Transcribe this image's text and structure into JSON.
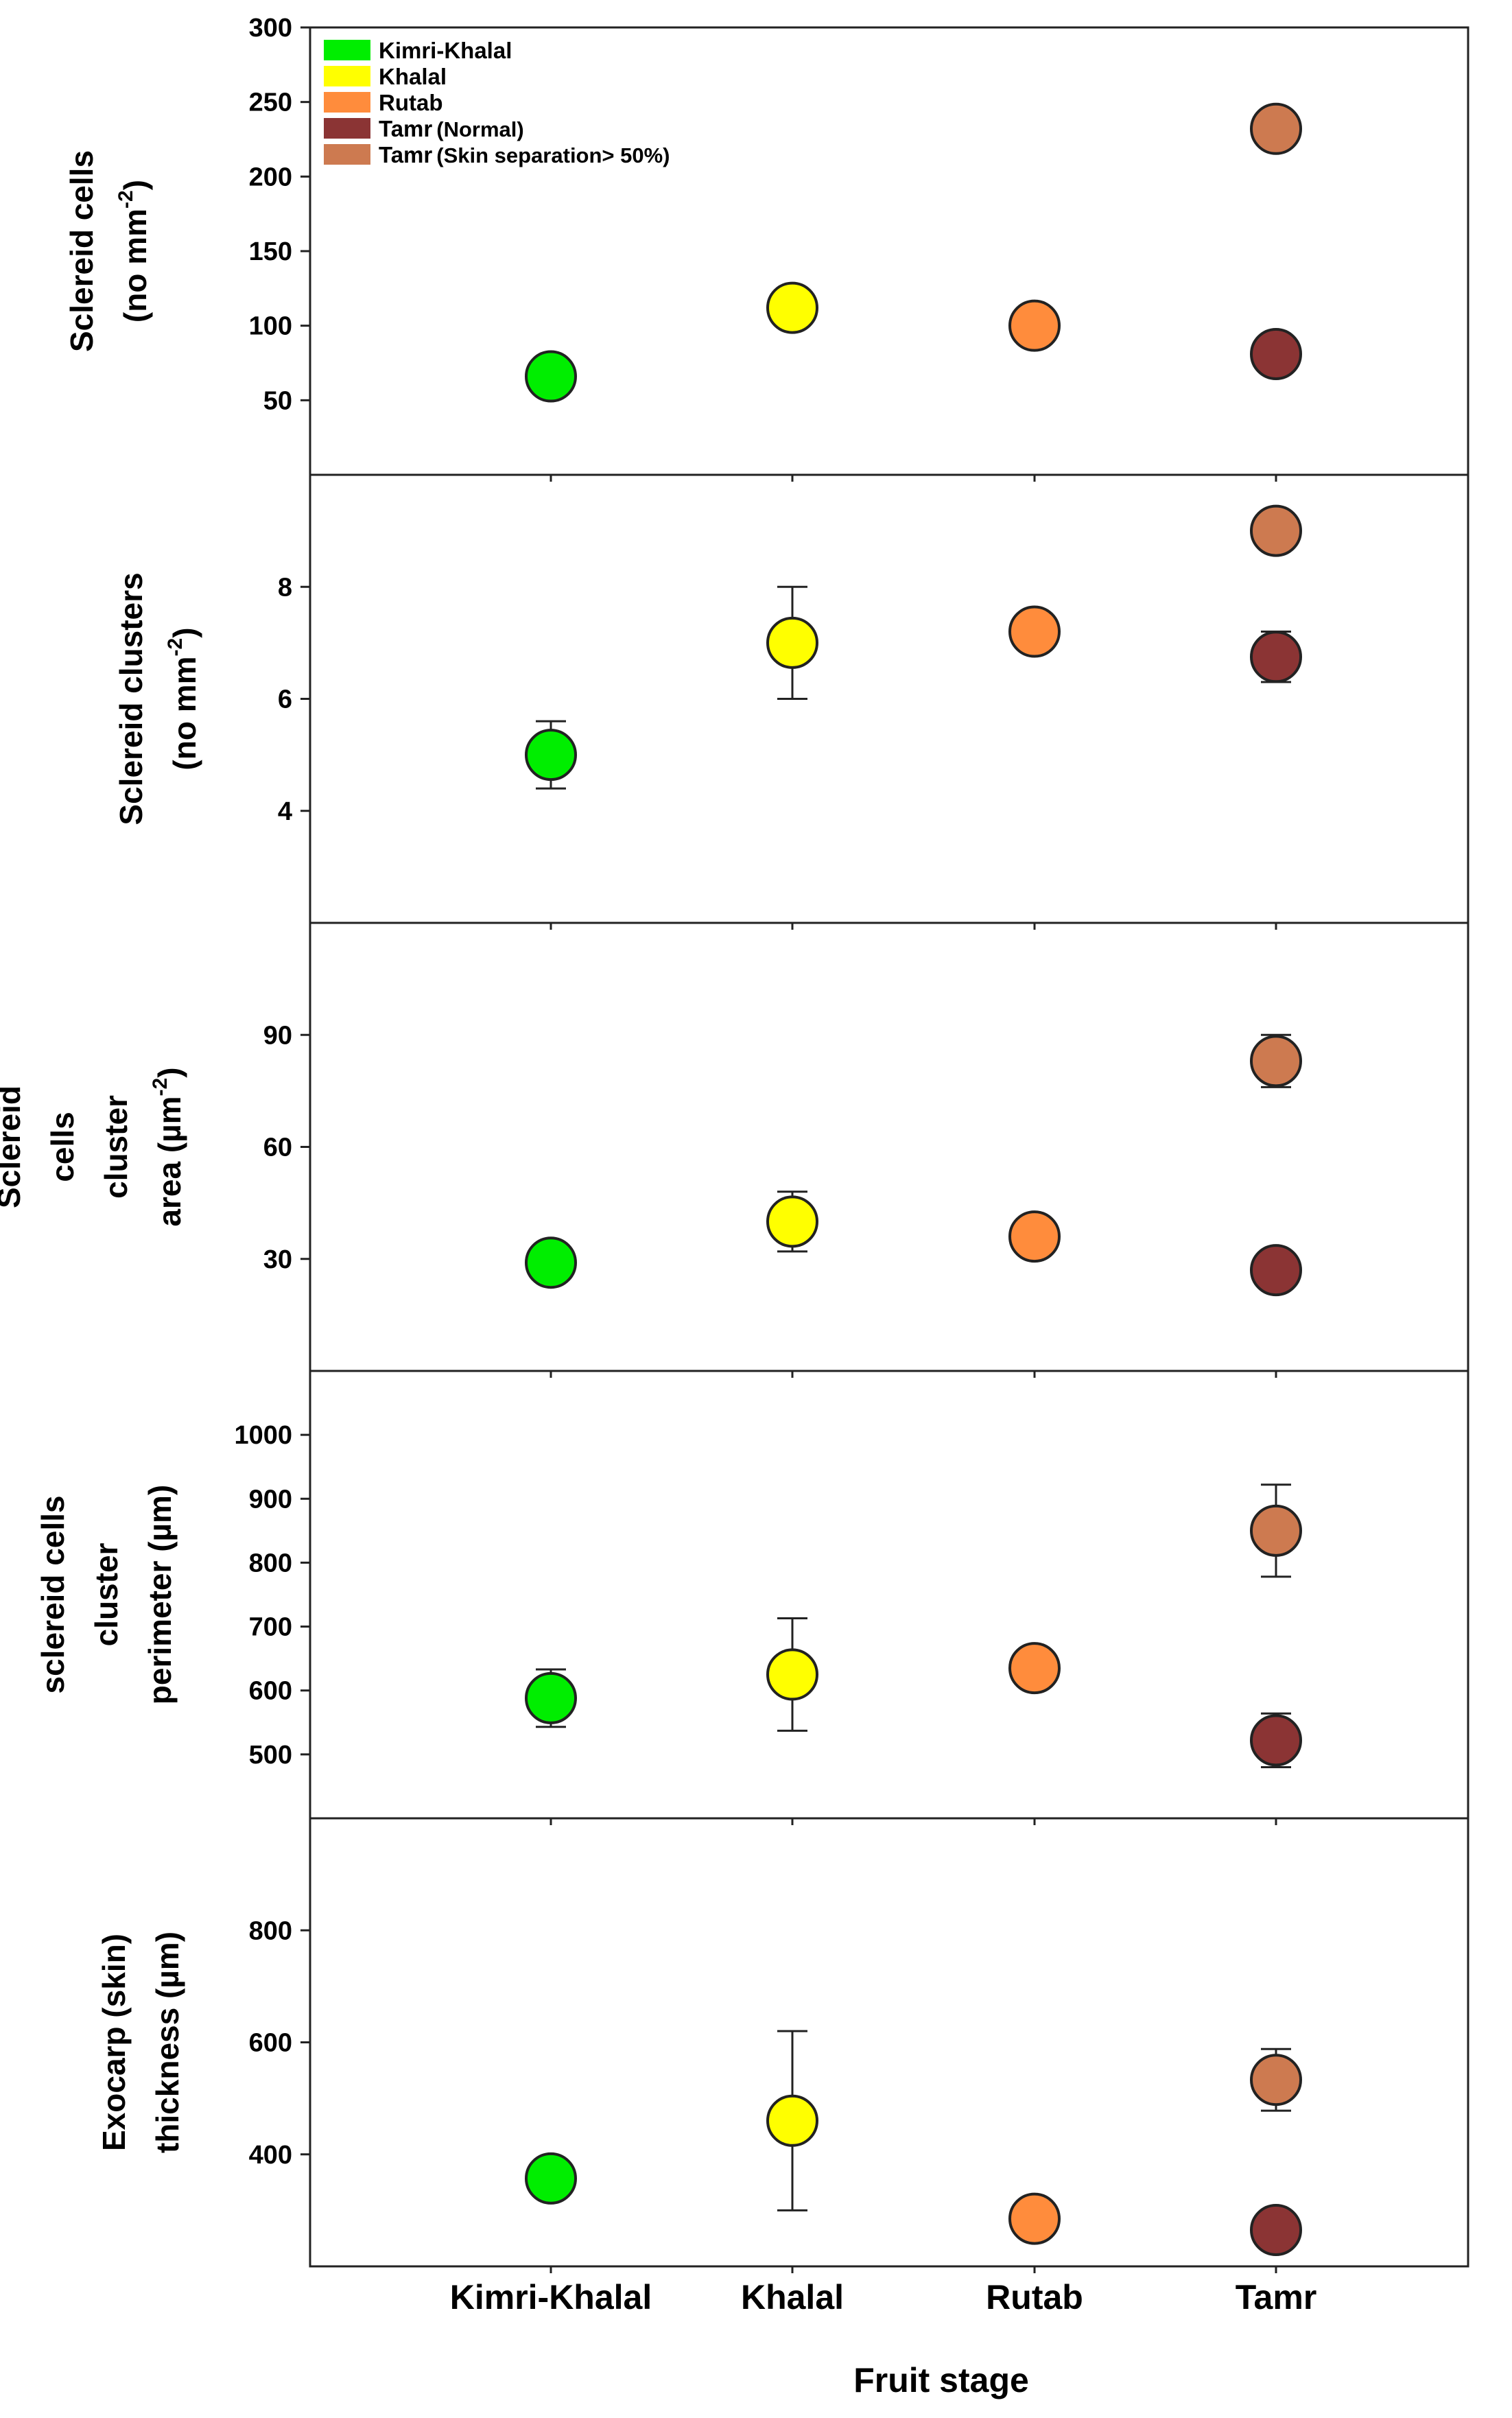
{
  "chart_data": {
    "type": "scatter",
    "xlabel": "Fruit stage",
    "categories": [
      "Kimri-Khalal",
      "Khalal",
      "Rutab",
      "Tamr"
    ],
    "legend": {
      "position": "top-left",
      "entries": [
        {
          "name": "Kimri-Khalal",
          "color": "#00ee00"
        },
        {
          "name": "Khalal",
          "color": "#ffff00"
        },
        {
          "name": "Rutab",
          "color": "#ff8c3c"
        },
        {
          "name": "Tamr",
          "note": "(Normal)",
          "color": "#8b3434"
        },
        {
          "name": "Tamr",
          "note": "(Skin separation> 50%)",
          "color": "#cd7a50"
        }
      ]
    },
    "panels": [
      {
        "ylabel_lines": [
          [
            "Sclereid cells"
          ],
          [
            "(no mm",
            "-2",
            ")"
          ]
        ],
        "ylim": [
          0,
          300
        ],
        "yticks": [
          50,
          100,
          150,
          200,
          250,
          300
        ],
        "points": [
          {
            "category": "Kimri-Khalal",
            "series": "Kimri-Khalal",
            "y": 66
          },
          {
            "category": "Khalal",
            "series": "Khalal",
            "y": 112
          },
          {
            "category": "Rutab",
            "series": "Rutab",
            "y": 100
          },
          {
            "category": "Tamr",
            "series": "Tamr (Normal)",
            "y": 81
          },
          {
            "category": "Tamr",
            "series": "Tamr (Skin separation > 50%)",
            "y": 232
          }
        ]
      },
      {
        "ylabel_lines": [
          [
            "Sclereid clusters"
          ],
          [
            "(no mm",
            "-2",
            ")"
          ]
        ],
        "ylim": [
          2,
          10
        ],
        "yticks": [
          4,
          6,
          8
        ],
        "points": [
          {
            "category": "Kimri-Khalal",
            "series": "Kimri-Khalal",
            "y": 5.0,
            "err": 0.6
          },
          {
            "category": "Khalal",
            "series": "Khalal",
            "y": 7.0,
            "err": 1.0
          },
          {
            "category": "Rutab",
            "series": "Rutab",
            "y": 7.2,
            "err": 0
          },
          {
            "category": "Tamr",
            "series": "Tamr (Normal)",
            "y": 6.75,
            "err": 0.45
          },
          {
            "category": "Tamr",
            "series": "Tamr (Skin separation > 50%)",
            "y": 9.0
          }
        ]
      },
      {
        "ylabel_lines": [
          [
            "Sclereid"
          ],
          [
            "cells"
          ],
          [
            "cluster"
          ],
          [
            "area (µm",
            "-2",
            ")"
          ]
        ],
        "ylim": [
          0,
          120
        ],
        "yticks": [
          30,
          60,
          90
        ],
        "points": [
          {
            "category": "Kimri-Khalal",
            "series": "Kimri-Khalal",
            "y": 29,
            "err": 0
          },
          {
            "category": "Khalal",
            "series": "Khalal",
            "y": 40,
            "err": 8
          },
          {
            "category": "Rutab",
            "series": "Rutab",
            "y": 36,
            "err": 0
          },
          {
            "category": "Tamr",
            "series": "Tamr (Normal)",
            "y": 27,
            "err": 0
          },
          {
            "category": "Tamr",
            "series": "Tamr (Skin separation > 50%)",
            "y": 83,
            "err": 7
          }
        ]
      },
      {
        "ylabel_lines": [
          [
            "sclereid cells"
          ],
          [
            "cluster"
          ],
          [
            "perimeter  (µm)"
          ]
        ],
        "ylim": [
          400,
          1100
        ],
        "yticks": [
          500,
          600,
          700,
          800,
          900,
          1000
        ],
        "points": [
          {
            "category": "Kimri-Khalal",
            "series": "Kimri-Khalal",
            "y": 588,
            "err": 45
          },
          {
            "category": "Khalal",
            "series": "Khalal",
            "y": 625,
            "err": 88
          },
          {
            "category": "Rutab",
            "series": "Rutab",
            "y": 635,
            "err": 0
          },
          {
            "category": "Tamr",
            "series": "Tamr (Normal)",
            "y": 522,
            "err": 42
          },
          {
            "category": "Tamr",
            "series": "Tamr (Skin separation > 50%)",
            "y": 850,
            "err": 72
          }
        ]
      },
      {
        "ylabel_lines": [
          [
            "Exocarp (skin)"
          ],
          [
            "thickness  (µm)"
          ]
        ],
        "ylim": [
          200,
          1000
        ],
        "yticks": [
          400,
          600,
          800
        ],
        "points": [
          {
            "category": "Kimri-Khalal",
            "series": "Kimri-Khalal",
            "y": 357,
            "err": 0
          },
          {
            "category": "Khalal",
            "series": "Khalal",
            "y": 460,
            "err": 160
          },
          {
            "category": "Rutab",
            "series": "Rutab",
            "y": 285,
            "err": 0
          },
          {
            "category": "Tamr",
            "series": "Tamr (Normal)",
            "y": 265,
            "err": 0
          },
          {
            "category": "Tamr",
            "series": "Tamr (Skin separation > 50%)",
            "y": 533,
            "err": 55
          }
        ]
      }
    ]
  }
}
